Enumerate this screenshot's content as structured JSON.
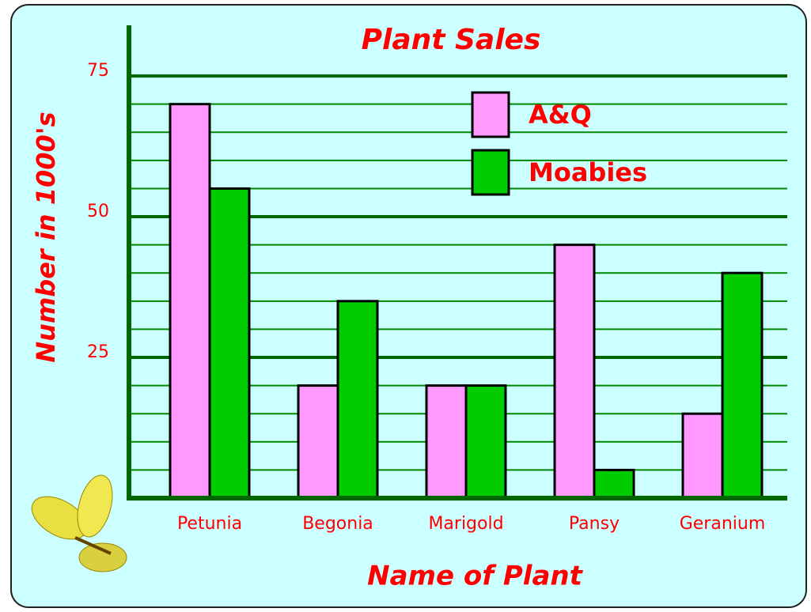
{
  "chart_data": {
    "type": "bar",
    "title": "Plant Sales",
    "x_label": "Name of Plant",
    "y_label": "Number in 1000's",
    "categories": [
      "Petunia",
      "Begonia",
      "Marigold",
      "Pansy",
      "Geranium"
    ],
    "series": [
      {
        "name": "A&Q",
        "color": "#ff99ff",
        "values": [
          70,
          20,
          20,
          45,
          15
        ]
      },
      {
        "name": "Moabies",
        "color": "#00cc00",
        "values": [
          55,
          35,
          20,
          5,
          40
        ]
      }
    ],
    "ylim": [
      0,
      84
    ],
    "yticks": [
      25,
      50,
      75
    ],
    "minor_yticks": [
      5,
      10,
      15,
      20,
      30,
      35,
      40,
      45,
      55,
      60,
      65,
      70
    ],
    "grid": true,
    "legend": "top-right"
  }
}
